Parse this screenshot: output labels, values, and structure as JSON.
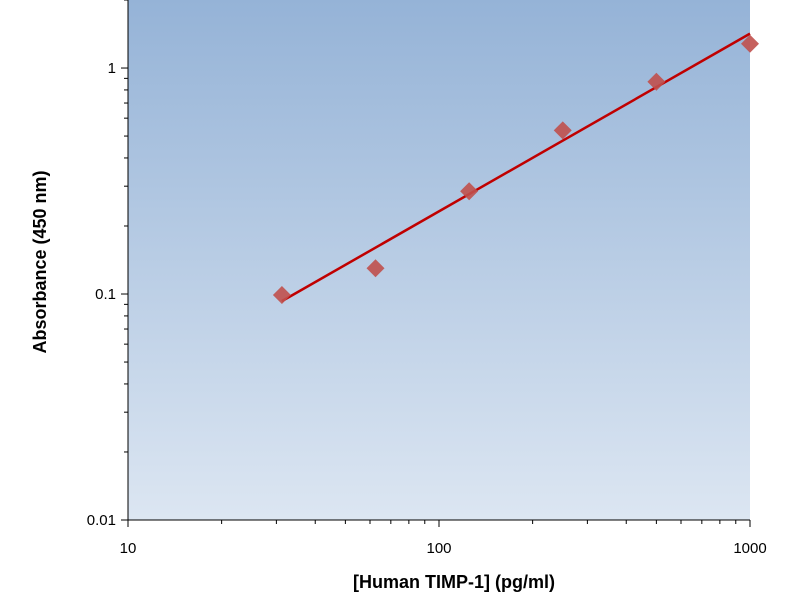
{
  "chart_data": {
    "type": "scatter",
    "title": "",
    "xlabel": "[Human TIMP-1] (pg/ml)",
    "ylabel": "Absorbance (450 nm)",
    "x_scale": "log",
    "y_scale": "log",
    "xlim": [
      10,
      1000
    ],
    "ylim": [
      0.01,
      2
    ],
    "x_ticks": [
      10,
      100,
      1000
    ],
    "x_tick_labels": [
      "10",
      "100",
      "1000"
    ],
    "y_ticks": [
      0.01,
      0.1,
      1
    ],
    "y_tick_labels": [
      "0.01",
      "0.1",
      "1"
    ],
    "grid": false,
    "legend": "none",
    "series": [
      {
        "points": [
          {
            "x": 31.25,
            "y": 0.099
          },
          {
            "x": 62.5,
            "y": 0.13
          },
          {
            "x": 125,
            "y": 0.285
          },
          {
            "x": 250,
            "y": 0.53
          },
          {
            "x": 500,
            "y": 0.87
          },
          {
            "x": 1000,
            "y": 1.28
          }
        ],
        "marker": "diamond",
        "color": "#c0504d"
      }
    ],
    "trendline": {
      "type": "power",
      "x_range": [
        31.25,
        1000
      ],
      "y_at_x_min": 0.093,
      "y_at_x_max": 1.42,
      "color": "#c00000"
    },
    "plot_background": {
      "gradient_top": "#95b3d7",
      "gradient_bottom": "#dce6f2"
    }
  }
}
